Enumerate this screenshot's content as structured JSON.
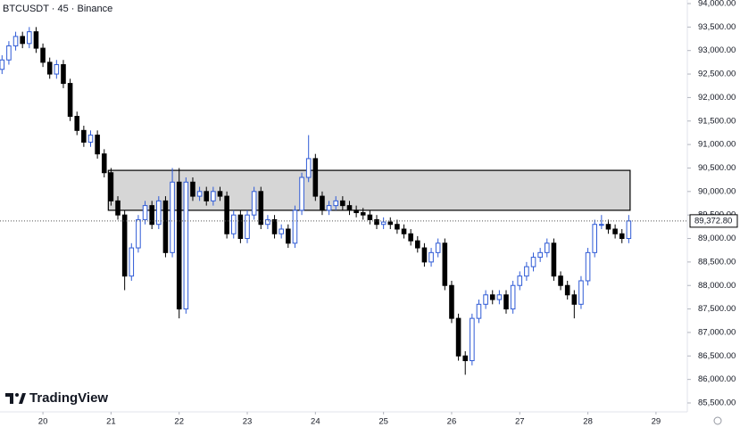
{
  "chart_data": {
    "type": "candlestick",
    "title": "BTCUSDT · 45 · Binance",
    "brand": "TradingView",
    "x": [
      19.4,
      19.5,
      19.6,
      19.7,
      19.8,
      19.9,
      20.0,
      20.1,
      20.2,
      20.3,
      20.4,
      20.5,
      20.6,
      20.7,
      20.8,
      20.9,
      21.0,
      21.1,
      21.2,
      21.3,
      21.4,
      21.5,
      21.6,
      21.7,
      21.8,
      21.9,
      22.0,
      22.1,
      22.2,
      22.3,
      22.4,
      22.5,
      22.6,
      22.7,
      22.8,
      22.9,
      23.0,
      23.1,
      23.2,
      23.3,
      23.4,
      23.5,
      23.6,
      23.7,
      23.8,
      23.9,
      24.0,
      24.1,
      24.2,
      24.3,
      24.4,
      24.5,
      24.6,
      24.7,
      24.8,
      24.9,
      25.0,
      25.1,
      25.2,
      25.3,
      25.4,
      25.5,
      25.6,
      25.7,
      25.8,
      25.9,
      26.0,
      26.1,
      26.2,
      26.3,
      26.4,
      26.5,
      26.6,
      26.7,
      26.8,
      26.9,
      27.0,
      27.1,
      27.2,
      27.3,
      27.4,
      27.5,
      27.6,
      27.7,
      27.8,
      27.9,
      28.0,
      28.1,
      28.2,
      28.3,
      28.4,
      28.5,
      28.6
    ],
    "open": [
      92600,
      92800,
      93100,
      93300,
      93150,
      93400,
      93050,
      92750,
      92500,
      92700,
      92300,
      91600,
      91300,
      91050,
      91200,
      90800,
      90400,
      89800,
      89500,
      88200,
      88800,
      89400,
      89700,
      89300,
      89800,
      88700,
      90200,
      87500,
      90200,
      89900,
      90000,
      89800,
      90000,
      89900,
      89100,
      89500,
      89000,
      89500,
      90000,
      89300,
      89400,
      89100,
      89200,
      88900,
      89600,
      90300,
      90700,
      89900,
      89600,
      89700,
      89800,
      89700,
      89600,
      89550,
      89500,
      89400,
      89300,
      89350,
      89300,
      89200,
      89100,
      88950,
      88800,
      88500,
      88700,
      88900,
      88000,
      87300,
      86500,
      86400,
      87300,
      87600,
      87800,
      87700,
      87800,
      87500,
      88000,
      88200,
      88400,
      88600,
      88700,
      88900,
      88200,
      88000,
      87800,
      87600,
      88100,
      88700,
      89300,
      89300,
      89200,
      89100,
      89000
    ],
    "high": [
      92900,
      93200,
      93400,
      93400,
      93500,
      93500,
      93150,
      92850,
      92800,
      92800,
      92400,
      91700,
      91400,
      91300,
      91300,
      90900,
      90500,
      89900,
      89600,
      88900,
      89500,
      89800,
      89800,
      89900,
      89900,
      90500,
      90500,
      90300,
      90300,
      90100,
      90100,
      90100,
      90100,
      90000,
      89600,
      89600,
      89600,
      90100,
      90100,
      89500,
      89500,
      89300,
      89300,
      89700,
      90400,
      91200,
      90800,
      90000,
      89800,
      89900,
      89900,
      89800,
      89700,
      89650,
      89600,
      89500,
      89450,
      89450,
      89400,
      89300,
      89200,
      89050,
      88900,
      88800,
      89000,
      89000,
      88100,
      87400,
      86600,
      87400,
      87700,
      87900,
      87900,
      87900,
      87900,
      88100,
      88300,
      88500,
      88700,
      88800,
      89000,
      89000,
      88300,
      88100,
      87900,
      88200,
      88800,
      89400,
      89500,
      89400,
      89300,
      89200,
      89500
    ],
    "low": [
      92500,
      92700,
      93000,
      93050,
      93050,
      92950,
      92650,
      92400,
      92400,
      92200,
      91500,
      91200,
      90950,
      90950,
      90700,
      90300,
      89700,
      89400,
      87900,
      88100,
      88700,
      89300,
      89200,
      89200,
      88600,
      88600,
      87300,
      87400,
      89800,
      89800,
      89700,
      89700,
      89800,
      89000,
      89000,
      88900,
      88900,
      89400,
      89200,
      89200,
      89000,
      89000,
      88800,
      88800,
      89500,
      90200,
      89800,
      89500,
      89500,
      89600,
      89600,
      89500,
      89450,
      89400,
      89300,
      89200,
      89200,
      89200,
      89100,
      89000,
      88850,
      88700,
      88400,
      88400,
      88600,
      87900,
      87200,
      86400,
      86100,
      86300,
      87200,
      87500,
      87600,
      87600,
      87400,
      87400,
      87900,
      88100,
      88300,
      88500,
      88600,
      88100,
      87900,
      87700,
      87300,
      87500,
      88000,
      88600,
      89200,
      89100,
      89000,
      88900,
      88900
    ],
    "close": [
      92800,
      93100,
      93300,
      93150,
      93400,
      93050,
      92750,
      92500,
      92700,
      92300,
      91600,
      91300,
      91050,
      91200,
      90800,
      90400,
      89800,
      89500,
      88200,
      88800,
      89400,
      89700,
      89300,
      89800,
      88700,
      90200,
      87500,
      90200,
      89900,
      90000,
      89800,
      90000,
      89900,
      89100,
      89500,
      89000,
      89500,
      90000,
      89300,
      89400,
      89100,
      89200,
      88900,
      89600,
      90300,
      90700,
      89900,
      89600,
      89700,
      89800,
      89700,
      89600,
      89550,
      89500,
      89400,
      89300,
      89350,
      89300,
      89200,
      89100,
      88950,
      88800,
      88500,
      88700,
      88900,
      88000,
      87300,
      86500,
      86400,
      87300,
      87600,
      87800,
      87700,
      87800,
      87500,
      88000,
      88200,
      88400,
      88600,
      88700,
      88900,
      88200,
      88000,
      87800,
      87600,
      88100,
      88700,
      89300,
      89300,
      89200,
      89100,
      89000,
      89372.8
    ],
    "up_color": "#2f5bd6",
    "down_color": "#000000",
    "zone": {
      "x": [
        20.96,
        28.62
      ],
      "y": [
        89600,
        90450
      ],
      "color": "#d1d1d1"
    },
    "last_price": {
      "value": 89372.8,
      "label": "89,372.80"
    },
    "xlim": [
      19.37,
      29.46
    ],
    "ylim": [
      85500,
      94000
    ],
    "xticks": [
      20,
      21,
      22,
      23,
      24,
      25,
      26,
      27,
      28,
      29
    ],
    "yticks": [
      {
        "value": 85500,
        "label": "85,500.00"
      },
      {
        "value": 86000,
        "label": "86,000.00"
      },
      {
        "value": 86500,
        "label": "86,500.00"
      },
      {
        "value": 87000,
        "label": "87,000.00"
      },
      {
        "value": 87500,
        "label": "87,500.00"
      },
      {
        "value": 88000,
        "label": "88,000.00"
      },
      {
        "value": 88500,
        "label": "88,500.00"
      },
      {
        "value": 89000,
        "label": "89,000.00"
      },
      {
        "value": 89500,
        "label": "89,500.00"
      },
      {
        "value": 90000,
        "label": "90,000.00"
      },
      {
        "value": 90500,
        "label": "90,500.00"
      },
      {
        "value": 91000,
        "label": "91,000.00"
      },
      {
        "value": 91500,
        "label": "91,500.00"
      },
      {
        "value": 92000,
        "label": "92,000.00"
      },
      {
        "value": 92500,
        "label": "92,500.00"
      },
      {
        "value": 93000,
        "label": "93,000.00"
      },
      {
        "value": 93500,
        "label": "93,500.00"
      },
      {
        "value": 94000,
        "label": "94,000.00"
      }
    ]
  }
}
